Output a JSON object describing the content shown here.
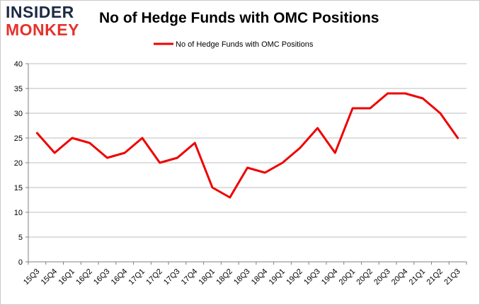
{
  "logo": {
    "line1": "INSIDER",
    "line2": "MONKEY"
  },
  "colors": {
    "series": "#ee0000",
    "grid": "#bdbdbd",
    "axis": "#808080",
    "text": "#000000"
  },
  "chart_data": {
    "type": "line",
    "title": "No of Hedge Funds with OMC Positions",
    "legend_position": "top-center",
    "grid": true,
    "ylim": [
      0,
      40
    ],
    "y_ticks": [
      0,
      5,
      10,
      15,
      20,
      25,
      30,
      35,
      40
    ],
    "categories": [
      "15Q3",
      "15Q4",
      "16Q1",
      "16Q2",
      "16Q3",
      "16Q4",
      "17Q1",
      "17Q2",
      "17Q3",
      "17Q4",
      "18Q1",
      "18Q2",
      "18Q3",
      "18Q4",
      "19Q1",
      "19Q2",
      "19Q3",
      "19Q4",
      "20Q1",
      "20Q2",
      "20Q3",
      "20Q4",
      "21Q1",
      "21Q2",
      "21Q3"
    ],
    "series": [
      {
        "name": "No of Hedge Funds with OMC Positions",
        "values": [
          26,
          22,
          25,
          24,
          21,
          22,
          25,
          20,
          21,
          24,
          15,
          13,
          19,
          18,
          20,
          23,
          27,
          22,
          31,
          31,
          34,
          34,
          33,
          30,
          25
        ]
      }
    ]
  }
}
